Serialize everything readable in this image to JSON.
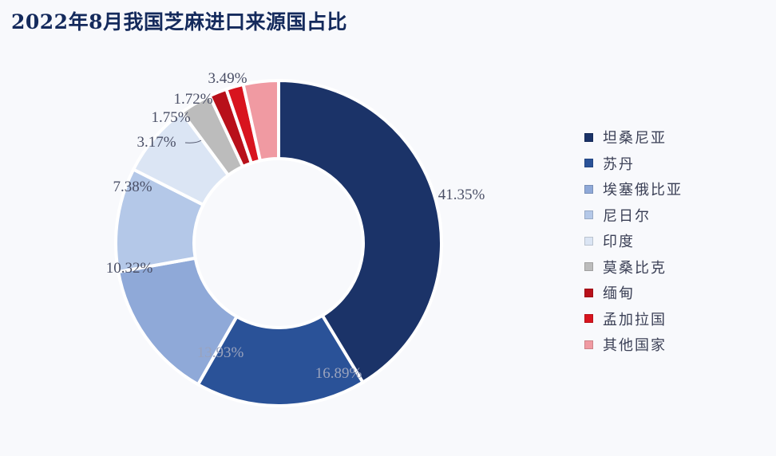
{
  "title": "2022年8月我国芝麻进口来源国占比",
  "chart_data": {
    "type": "pie",
    "subtype": "donut",
    "title": "2022年8月我国芝麻进口来源国占比",
    "categories": [
      "坦桑尼亚",
      "苏丹",
      "埃塞俄比亚",
      "尼日尔",
      "印度",
      "莫桑比克",
      "缅甸",
      "孟加拉国",
      "其他国家"
    ],
    "values": [
      41.35,
      16.89,
      13.93,
      10.32,
      7.38,
      3.17,
      1.75,
      1.72,
      3.49
    ],
    "labels": [
      "41.35%",
      "16.89%",
      "13.93%",
      "10.32%",
      "7.38%",
      "3.17%",
      "1.75%",
      "1.72%",
      "3.49%"
    ],
    "colors": [
      "#1b3368",
      "#2a5298",
      "#8fa9d8",
      "#b4c8e8",
      "#dbe5f4",
      "#bcbcbc",
      "#b8101a",
      "#d8141e",
      "#f09aa2"
    ],
    "unit": "%",
    "legend_position": "right",
    "start_angle_deg": 0,
    "direction": "clockwise"
  },
  "legend": {
    "items": [
      {
        "label": "坦桑尼亚",
        "color": "#1b3368"
      },
      {
        "label": "苏丹",
        "color": "#2a5298"
      },
      {
        "label": "埃塞俄比亚",
        "color": "#8fa9d8"
      },
      {
        "label": "尼日尔",
        "color": "#b4c8e8"
      },
      {
        "label": "印度",
        "color": "#dbe5f4"
      },
      {
        "label": "莫桑比克",
        "color": "#bcbcbc"
      },
      {
        "label": "缅甸",
        "color": "#b8101a"
      },
      {
        "label": "孟加拉国",
        "color": "#d8141e"
      },
      {
        "label": "其他国家",
        "color": "#f09aa2"
      }
    ]
  }
}
